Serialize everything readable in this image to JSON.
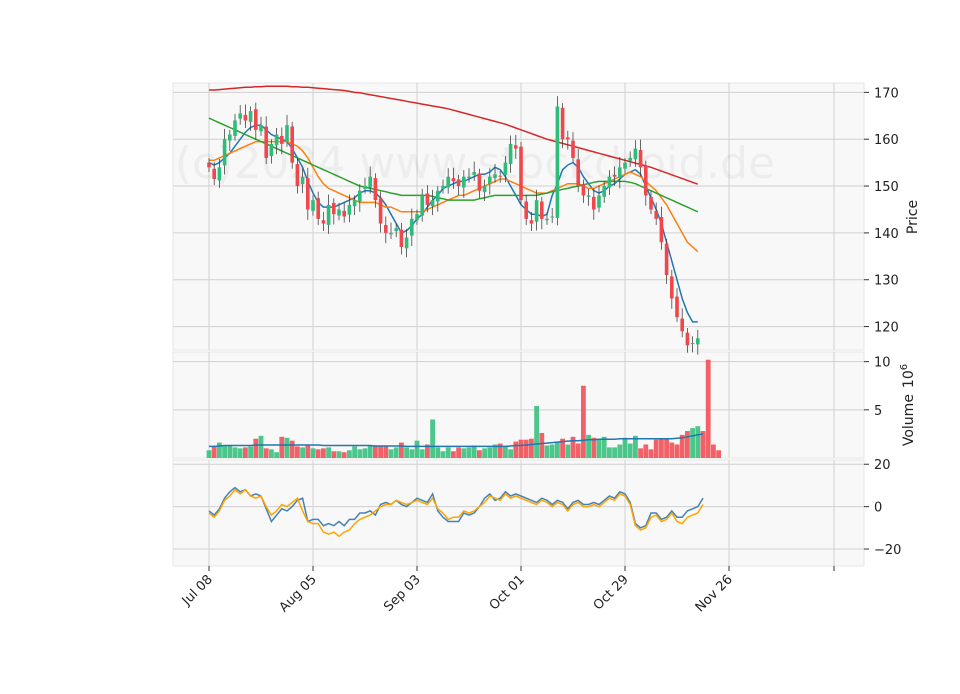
{
  "watermark": "(c)2024 www.stockdroid.de",
  "colors": {
    "up": "#2ebd78",
    "down": "#f0474d",
    "ma_short": "#1f77b4",
    "ma_mid": "#ff7f0e",
    "ma_long": "#2ca02c",
    "ma_200": "#d62728",
    "volume_ma": "#1f77b4",
    "osc_line": "#4682b4",
    "osc_signal": "#ffa500",
    "panel_bg": "#f8f8f8",
    "grid": "#d0d0d0"
  },
  "chart_data": [
    {
      "type": "candlestick",
      "panel": "price",
      "ylabel": "Price",
      "ylim": [
        115,
        172
      ],
      "yticks": [
        120,
        130,
        140,
        150,
        160,
        170
      ],
      "xticks": [
        "Jul 08",
        "Aug 05",
        "Sep 03",
        "Oct 01",
        "Oct 29",
        "Nov 26"
      ],
      "xtick_index": [
        0,
        20,
        40,
        60,
        80,
        100
      ],
      "grid": true,
      "closes": [
        154,
        151.5,
        154,
        160,
        161,
        164,
        165.5,
        164,
        166,
        162,
        163,
        156,
        159,
        161,
        159,
        163,
        155,
        150,
        152,
        145,
        147,
        143,
        142,
        146,
        144,
        145,
        143.5,
        146,
        147,
        149,
        150,
        152,
        147,
        142,
        140,
        140,
        141,
        137,
        139,
        143,
        144,
        148,
        146,
        147,
        149,
        150,
        152,
        151,
        150,
        152,
        152,
        153,
        149,
        150,
        152,
        152.5,
        152,
        155,
        159,
        158,
        147,
        143,
        142,
        147,
        143,
        143,
        143.5,
        167,
        160,
        160,
        156,
        150,
        148,
        148,
        145,
        148,
        150,
        152,
        152,
        154,
        155,
        156,
        158,
        154,
        148,
        145,
        143,
        138,
        131,
        126,
        122,
        119,
        116,
        116.5,
        117.5
      ],
      "series": [
        {
          "name": "MA short",
          "values": [
            155,
            154.5,
            155,
            156,
            157,
            158.5,
            160,
            161.5,
            162.5,
            163,
            163,
            162,
            161,
            160.5,
            160,
            159.5,
            158,
            156,
            154,
            151,
            148.5,
            146.5,
            145.5,
            145.5,
            145.5,
            146,
            146.5,
            147,
            147.5,
            148.5,
            149,
            149,
            148.5,
            147.5,
            146,
            144,
            142,
            140,
            140.5,
            141.5,
            143,
            144,
            145.5,
            147,
            148,
            149.5,
            150,
            150.5,
            151,
            151,
            151.5,
            152,
            152.5,
            152.5,
            153,
            154,
            153.5,
            152,
            150,
            148,
            146,
            145,
            144,
            144,
            143.5,
            144,
            148,
            150.5,
            153.5,
            154.5,
            155,
            154,
            152,
            150.5,
            149,
            148.5,
            149,
            150,
            150.5,
            151.5,
            152.5,
            153,
            153.5,
            152.5,
            150,
            147.5,
            145,
            142,
            138,
            134,
            130,
            126,
            123,
            121,
            121
          ]
        },
        {
          "name": "MA mid",
          "values": [
            155.5,
            155.5,
            156,
            156.5,
            157,
            157.5,
            158,
            158.5,
            159,
            159.5,
            159.5,
            159.5,
            159.5,
            159.5,
            159.5,
            159.5,
            159,
            158.5,
            157.5,
            156,
            154,
            152,
            150.5,
            149.5,
            149,
            148.5,
            148,
            147.5,
            147,
            146.5,
            146.5,
            146.5,
            146.5,
            146,
            145.5,
            145.5,
            145,
            144.5,
            144.5,
            144.5,
            144.5,
            144.5,
            145,
            145.5,
            146,
            146.5,
            147,
            147.5,
            148,
            148,
            148.5,
            149,
            149.5,
            150,
            150.5,
            151,
            151.5,
            151.5,
            151,
            150.5,
            150,
            149.5,
            149,
            148.5,
            148.5,
            148.5,
            149,
            149.5,
            150,
            150.5,
            150.5,
            150.5,
            150,
            149.5,
            149.5,
            150,
            150.5,
            151,
            151.5,
            152,
            152.5,
            153,
            152.5,
            152,
            151,
            150,
            149,
            147.5,
            146,
            144,
            142,
            140,
            138,
            137,
            136
          ]
        },
        {
          "name": "MA long",
          "values": [
            164.5,
            164,
            163.5,
            163,
            162.5,
            162,
            161.5,
            161,
            160.5,
            160,
            159.5,
            159,
            158.5,
            158,
            157.5,
            157,
            156.5,
            156,
            155.5,
            155,
            154.5,
            154,
            153.5,
            153,
            152.5,
            152,
            151.5,
            151,
            150.5,
            150,
            149.8,
            149.5,
            149.3,
            149,
            148.8,
            148.5,
            148.3,
            148,
            148,
            148,
            148,
            148,
            148,
            147.8,
            147.5,
            147.3,
            147,
            147,
            147,
            147,
            147,
            147,
            147.3,
            147.5,
            147.8,
            148,
            148,
            148,
            148,
            148,
            148,
            148,
            148,
            148,
            148.3,
            148.5,
            148.8,
            149,
            149.3,
            149.5,
            149.8,
            150,
            150.3,
            150.5,
            150.8,
            151,
            151,
            151,
            151,
            151,
            151,
            150.8,
            150.5,
            150,
            149.5,
            149,
            148.5,
            148,
            147.5,
            147,
            146.5,
            146,
            145.5,
            145,
            144.5
          ]
        },
        {
          "name": "MA 200",
          "values": [
            170.5,
            170.5,
            170.6,
            170.7,
            170.8,
            170.9,
            171,
            171.1,
            171.1,
            171.2,
            171.2,
            171.3,
            171.3,
            171.3,
            171.3,
            171.3,
            171.2,
            171.2,
            171.1,
            171.1,
            171,
            170.9,
            170.8,
            170.7,
            170.6,
            170.5,
            170.4,
            170.2,
            170,
            169.9,
            169.7,
            169.5,
            169.3,
            169.1,
            168.9,
            168.7,
            168.5,
            168.3,
            168.1,
            167.9,
            167.7,
            167.5,
            167.3,
            167.1,
            166.9,
            166.7,
            166.5,
            166.2,
            165.9,
            165.6,
            165.3,
            165,
            164.7,
            164.4,
            164.1,
            163.8,
            163.5,
            163.2,
            162.8,
            162.4,
            162,
            161.6,
            161.2,
            160.8,
            160.4,
            160,
            159.7,
            159.4,
            159.1,
            158.8,
            158.5,
            158.2,
            157.9,
            157.6,
            157.3,
            157,
            156.7,
            156.4,
            156.1,
            155.8,
            155.5,
            155.2,
            154.9,
            154.6,
            154.3,
            154,
            153.6,
            153.2,
            152.8,
            152.4,
            152,
            151.6,
            151.2,
            150.8,
            150.4
          ]
        }
      ]
    },
    {
      "type": "bar",
      "panel": "volume",
      "ylabel": "Volume",
      "ylabel_exponent": "10^6",
      "ylim": [
        0,
        11
      ],
      "yticks": [
        5,
        10
      ],
      "grid": true,
      "values": [
        0.8,
        1.2,
        1.6,
        1.3,
        1.3,
        1.1,
        1.0,
        1.1,
        1.2,
        2.0,
        2.3,
        1.0,
        0.9,
        0.6,
        2.2,
        2.1,
        1.8,
        1.2,
        1.1,
        1.4,
        1.0,
        0.9,
        1.0,
        1.1,
        0.7,
        0.7,
        0.6,
        0.8,
        1.2,
        0.9,
        1.0,
        1.3,
        1.2,
        1.2,
        1.2,
        0.9,
        1.1,
        1.6,
        1.1,
        0.9,
        1.8,
        0.9,
        1.4,
        4.0,
        1.1,
        0.7,
        1.1,
        0.7,
        1.1,
        1.0,
        1.1,
        1.3,
        0.8,
        1.0,
        1.1,
        1.4,
        1.5,
        1.2,
        0.9,
        1.7,
        1.9,
        1.9,
        2.0,
        5.4,
        2.6,
        1.3,
        1.4,
        1.7,
        2.0,
        1.4,
        2.2,
        1.5,
        7.5,
        2.4,
        2.1,
        1.9,
        2.2,
        1.1,
        1.1,
        1.4,
        2.1,
        1.5,
        2.3,
        1.0,
        1.4,
        0.9,
        1.9,
        2.0,
        2.0,
        1.6,
        1.4,
        2.4,
        2.8,
        3.1,
        3.3,
        2.8,
        10.2,
        1.4,
        0.8
      ],
      "series": [
        {
          "name": "Volume MA",
          "values": [
            1.2,
            1.2,
            1.25,
            1.3,
            1.3,
            1.3,
            1.3,
            1.3,
            1.3,
            1.35,
            1.35,
            1.35,
            1.35,
            1.35,
            1.35,
            1.35,
            1.35,
            1.35,
            1.35,
            1.35,
            1.35,
            1.35,
            1.3,
            1.3,
            1.3,
            1.3,
            1.3,
            1.3,
            1.3,
            1.3,
            1.3,
            1.3,
            1.25,
            1.25,
            1.25,
            1.25,
            1.25,
            1.25,
            1.2,
            1.2,
            1.2,
            1.2,
            1.2,
            1.2,
            1.2,
            1.2,
            1.2,
            1.2,
            1.2,
            1.2,
            1.2,
            1.2,
            1.2,
            1.2,
            1.2,
            1.2,
            1.2,
            1.2,
            1.25,
            1.3,
            1.3,
            1.35,
            1.4,
            1.45,
            1.5,
            1.55,
            1.6,
            1.65,
            1.7,
            1.75,
            1.8,
            1.8,
            1.85,
            1.9,
            1.9,
            1.95,
            1.95,
            1.95,
            1.95,
            2.0,
            2.0,
            2.0,
            2.0,
            2.0,
            2.0,
            2.0,
            2.0,
            2.0,
            2.0,
            2.0,
            2.05,
            2.1,
            2.2,
            2.3,
            2.4,
            2.5
          ]
        }
      ]
    },
    {
      "type": "line",
      "panel": "oscillator",
      "ylim": [
        -28,
        22
      ],
      "yticks": [
        -20,
        0,
        20
      ],
      "grid": true,
      "series": [
        {
          "name": "Oscillator",
          "values": [
            -2,
            -4,
            -1,
            4,
            7,
            9,
            7,
            8,
            5,
            6,
            5,
            -1,
            -7,
            -4,
            -1,
            -2,
            0,
            3,
            4,
            -7,
            -6,
            -6,
            -9,
            -8,
            -9,
            -7,
            -9,
            -6,
            -6,
            -3,
            -3,
            -2,
            -4,
            1,
            2,
            1,
            3,
            1,
            0,
            2,
            4,
            3,
            2,
            6,
            -2,
            -5,
            -7,
            -7,
            -7,
            -3,
            -4,
            -3,
            0,
            4,
            6,
            3,
            4,
            7,
            5,
            6,
            5,
            4,
            3,
            2,
            4,
            3,
            1,
            3,
            2,
            -1,
            2,
            3,
            1,
            1,
            2,
            1,
            3,
            5,
            4,
            7,
            6,
            2,
            -8,
            -10,
            -9,
            -3,
            -3,
            -6,
            -5,
            -2,
            -5,
            -5,
            -2,
            -1,
            0,
            4
          ],
          "values_hidden": true
        },
        {
          "name": "Signal",
          "values": [
            -3,
            -5,
            -2,
            3,
            5,
            8,
            6,
            8,
            5,
            4,
            5,
            0,
            -4,
            -2,
            1,
            0,
            2,
            4,
            -2,
            -7,
            -8,
            -8,
            -12,
            -13,
            -12,
            -14,
            -12,
            -11,
            -8,
            -6,
            -5,
            -4,
            -2,
            0,
            1,
            1,
            3,
            2,
            1,
            2,
            3,
            2,
            1,
            4,
            -1,
            -3,
            -6,
            -5,
            -5,
            -2,
            -3,
            -2,
            0,
            2,
            5,
            4,
            3,
            6,
            4,
            5,
            4,
            3,
            2,
            1,
            3,
            2,
            0,
            2,
            1,
            -2,
            1,
            2,
            0,
            0,
            1,
            0,
            2,
            4,
            3,
            6,
            5,
            1,
            -9,
            -11,
            -10,
            -5,
            -4,
            -7,
            -6,
            -3,
            -7,
            -8,
            -5,
            -4,
            -3,
            1
          ]
        }
      ]
    }
  ]
}
